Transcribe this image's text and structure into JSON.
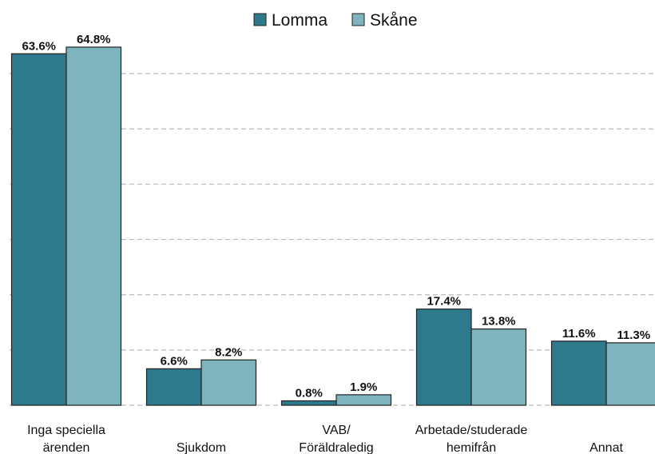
{
  "chart_data": {
    "type": "bar",
    "categories": [
      [
        "Inga speciella",
        "ärenden"
      ],
      [
        "Sjukdom"
      ],
      [
        "VAB/",
        "Föräldraledig"
      ],
      [
        "Arbetade/studerade",
        "hemifrån"
      ],
      [
        "Annat"
      ]
    ],
    "series": [
      {
        "name": "Lomma",
        "color": "#2e7a8c",
        "values": [
          63.6,
          6.6,
          0.8,
          17.4,
          11.6
        ],
        "value_labels": [
          "63.6%",
          "6.6%",
          "0.8%",
          "17.4%",
          "11.6%"
        ]
      },
      {
        "name": "Skåne",
        "color": "#7fb3bd",
        "values": [
          64.8,
          8.2,
          1.9,
          13.8,
          11.3
        ],
        "value_labels": [
          "64.8%",
          "8.2%",
          "1.9%",
          "13.8%",
          "11.3%"
        ]
      }
    ],
    "ylim": [
      0,
      70
    ],
    "yticks": [
      0,
      10,
      20,
      30,
      40,
      50,
      60
    ],
    "grid": true,
    "legend": "top"
  }
}
